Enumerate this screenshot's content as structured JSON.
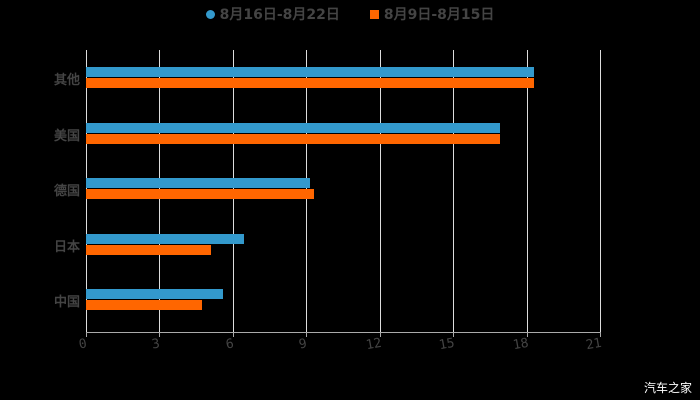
{
  "chart_data": {
    "type": "bar",
    "orientation": "horizontal",
    "categories": [
      "其他",
      "美国",
      "德国",
      "日本",
      "中国"
    ],
    "series": [
      {
        "name": "8月16日-8月22日",
        "color": "#3399cc",
        "values": [
          18.3,
          16.9,
          9.15,
          6.45,
          5.6
        ]
      },
      {
        "name": "8月9日-8月15日",
        "color": "#ff6600",
        "values": [
          18.3,
          16.9,
          9.3,
          5.1,
          4.75
        ]
      }
    ],
    "xlim": [
      0,
      21
    ],
    "xticks": [
      0,
      3,
      6,
      9,
      12,
      15,
      18,
      21
    ],
    "legend_position": "top",
    "grid": true
  },
  "watermark": "汽车之家"
}
